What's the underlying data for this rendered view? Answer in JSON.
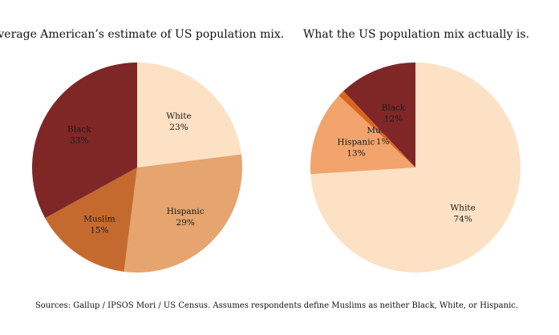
{
  "chart_data": [
    {
      "type": "pie",
      "title": "Average American’s estimate of US population mix.",
      "slices": [
        {
          "label": "White",
          "value": 23,
          "value_label": "23%",
          "color": "#FDE1C4"
        },
        {
          "label": "Hispanic",
          "value": 29,
          "value_label": "29%",
          "color": "#E6A46E"
        },
        {
          "label": "Muslim",
          "value": 15,
          "value_label": "15%",
          "color": "#C56A2E"
        },
        {
          "label": "Black",
          "value": 33,
          "value_label": "33%",
          "color": "#7F2627"
        }
      ]
    },
    {
      "type": "pie",
      "title": "What the US population mix actually is.",
      "slices": [
        {
          "label": "White",
          "value": 74,
          "value_label": "74%",
          "color": "#FDE1C4"
        },
        {
          "label": "Hispanic",
          "value": 13,
          "value_label": "13%",
          "color": "#F2A46C"
        },
        {
          "label": "Muslim",
          "value": 1,
          "value_label": "1%",
          "color": "#D9661E"
        },
        {
          "label": "Black",
          "value": 12,
          "value_label": "12%",
          "color": "#7F2627"
        }
      ]
    }
  ],
  "footer": {
    "source_note": "Sources: Gallup / IPSOS Mori / US Census. Assumes respondents define Muslims as neither Black, White, or Hispanic."
  }
}
